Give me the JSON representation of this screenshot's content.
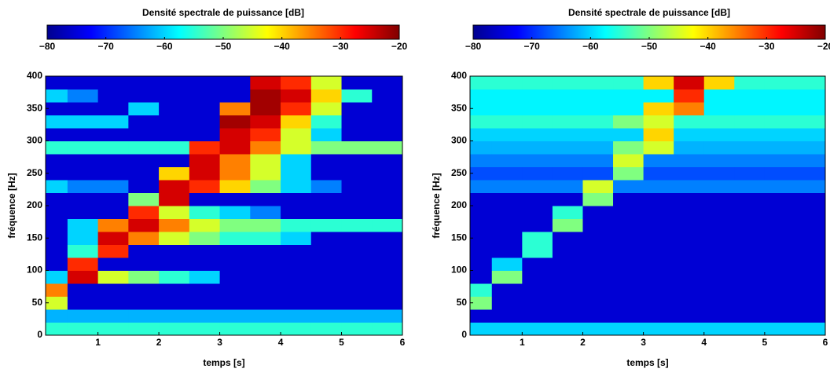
{
  "chart_data": [
    {
      "type": "heatmap",
      "colorbar_label": "Densité spectrale de puissance [dB]",
      "clim": [
        -80,
        -20
      ],
      "cticks": [
        {
          "value": -80,
          "label": "−80"
        },
        {
          "value": -70,
          "label": "−70"
        },
        {
          "value": -60,
          "label": "−60"
        },
        {
          "value": -50,
          "label": "−50"
        },
        {
          "value": -40,
          "label": "−40"
        },
        {
          "value": -30,
          "label": "−30"
        },
        {
          "value": -20,
          "label": "−20"
        }
      ],
      "colormap": "jet",
      "xlabel": "temps [s]",
      "ylabel": "fréquence [Hz]",
      "xlim": [
        0.14,
        6
      ],
      "xticks": [
        1,
        2,
        3,
        4,
        5,
        6
      ],
      "ylim": [
        0,
        400
      ],
      "yticks": [
        0,
        50,
        100,
        150,
        200,
        250,
        300,
        350,
        400
      ],
      "x": [
        0.25,
        0.75,
        1.25,
        1.75,
        2.25,
        2.75,
        3.25,
        3.75,
        4.25,
        4.75,
        5.25,
        5.75
      ],
      "y": [
        10,
        30,
        50,
        70,
        90,
        110,
        130,
        150,
        170,
        190,
        210,
        230,
        250,
        270,
        290,
        310,
        330,
        350,
        370,
        390
      ],
      "z": [
        [
          -55,
          -55,
          -55,
          -55,
          -55,
          -55,
          -55,
          -55,
          -55,
          -55,
          -55,
          -55
        ],
        [
          -62,
          -62,
          -62,
          -62,
          -62,
          -62,
          -62,
          -62,
          -62,
          -62,
          -62,
          -62
        ],
        [
          -45,
          -75,
          -75,
          -75,
          -75,
          -75,
          -75,
          -75,
          -75,
          -75,
          -75,
          -75
        ],
        [
          -35,
          -75,
          -75,
          -75,
          -75,
          -75,
          -75,
          -75,
          -75,
          -75,
          -75,
          -75
        ],
        [
          -60,
          -25,
          -45,
          -50,
          -55,
          -60,
          -75,
          -75,
          -75,
          -75,
          -75,
          -75
        ],
        [
          -75,
          -30,
          -75,
          -75,
          -75,
          -75,
          -75,
          -75,
          -75,
          -75,
          -75,
          -75
        ],
        [
          -75,
          -55,
          -30,
          -75,
          -75,
          -75,
          -75,
          -75,
          -75,
          -75,
          -75,
          -75
        ],
        [
          -75,
          -60,
          -25,
          -35,
          -45,
          -50,
          -55,
          -55,
          -60,
          -75,
          -75,
          -75
        ],
        [
          -75,
          -60,
          -35,
          -25,
          -35,
          -45,
          -50,
          -50,
          -55,
          -55,
          -55,
          -55
        ],
        [
          -75,
          -75,
          -75,
          -30,
          -45,
          -55,
          -60,
          -65,
          -75,
          -75,
          -75,
          -75
        ],
        [
          -75,
          -75,
          -75,
          -50,
          -25,
          -75,
          -75,
          -75,
          -75,
          -75,
          -75,
          -75
        ],
        [
          -60,
          -65,
          -65,
          -75,
          -25,
          -30,
          -40,
          -50,
          -60,
          -65,
          -75,
          -75
        ],
        [
          -75,
          -75,
          -75,
          -75,
          -40,
          -25,
          -35,
          -45,
          -60,
          -75,
          -75,
          -75
        ],
        [
          -75,
          -75,
          -75,
          -75,
          -75,
          -25,
          -35,
          -45,
          -60,
          -75,
          -75,
          -75
        ],
        [
          -55,
          -55,
          -55,
          -55,
          -55,
          -30,
          -25,
          -35,
          -45,
          -50,
          -50,
          -50
        ],
        [
          -75,
          -75,
          -75,
          -75,
          -75,
          -75,
          -25,
          -30,
          -45,
          -60,
          -75,
          -75
        ],
        [
          -60,
          -60,
          -60,
          -75,
          -75,
          -75,
          -22,
          -25,
          -40,
          -55,
          -75,
          -75
        ],
        [
          -75,
          -75,
          -75,
          -60,
          -75,
          -75,
          -35,
          -22,
          -30,
          -45,
          -75,
          -75
        ],
        [
          -60,
          -65,
          -75,
          -75,
          -75,
          -75,
          -75,
          -22,
          -25,
          -40,
          -55,
          -75
        ],
        [
          -75,
          -75,
          -75,
          -75,
          -75,
          -75,
          -75,
          -25,
          -30,
          -45,
          -75,
          -75
        ]
      ]
    },
    {
      "type": "heatmap",
      "colorbar_label": "Densité spectrale de puissance [dB]",
      "clim": [
        -80,
        -20
      ],
      "cticks": [
        {
          "value": -80,
          "label": "−80"
        },
        {
          "value": -70,
          "label": "−70"
        },
        {
          "value": -60,
          "label": "−60"
        },
        {
          "value": -50,
          "label": "−50"
        },
        {
          "value": -40,
          "label": "−40"
        },
        {
          "value": -30,
          "label": "−30"
        },
        {
          "value": -20,
          "label": "−20"
        }
      ],
      "colormap": "jet",
      "xlabel": "temps [s]",
      "ylabel": "fréquence [Hz]",
      "xlim": [
        0.14,
        6
      ],
      "xticks": [
        1,
        2,
        3,
        4,
        5,
        6
      ],
      "ylim": [
        0,
        400
      ],
      "yticks": [
        0,
        50,
        100,
        150,
        200,
        250,
        300,
        350,
        400
      ],
      "x": [
        0.25,
        0.75,
        1.25,
        1.75,
        2.25,
        2.75,
        3.25,
        3.75,
        4.25,
        4.75,
        5.25,
        5.75
      ],
      "y": [
        10,
        30,
        50,
        70,
        90,
        110,
        130,
        150,
        170,
        190,
        210,
        230,
        250,
        270,
        290,
        310,
        330,
        350,
        370,
        390
      ],
      "z": [
        [
          -60,
          -60,
          -60,
          -60,
          -60,
          -60,
          -60,
          -60,
          -60,
          -60,
          -60,
          -60
        ],
        [
          -75,
          -75,
          -75,
          -75,
          -75,
          -75,
          -75,
          -75,
          -75,
          -75,
          -75,
          -75
        ],
        [
          -50,
          -75,
          -75,
          -75,
          -75,
          -75,
          -75,
          -75,
          -75,
          -75,
          -75,
          -75
        ],
        [
          -55,
          -75,
          -75,
          -75,
          -75,
          -75,
          -75,
          -75,
          -75,
          -75,
          -75,
          -75
        ],
        [
          -75,
          -50,
          -75,
          -75,
          -75,
          -75,
          -75,
          -75,
          -75,
          -75,
          -75,
          -75
        ],
        [
          -75,
          -60,
          -75,
          -75,
          -75,
          -75,
          -75,
          -75,
          -75,
          -75,
          -75,
          -75
        ],
        [
          -75,
          -75,
          -55,
          -75,
          -75,
          -75,
          -75,
          -75,
          -75,
          -75,
          -75,
          -75
        ],
        [
          -75,
          -75,
          -55,
          -75,
          -75,
          -75,
          -75,
          -75,
          -75,
          -75,
          -75,
          -75
        ],
        [
          -75,
          -75,
          -75,
          -50,
          -75,
          -75,
          -75,
          -75,
          -75,
          -75,
          -75,
          -75
        ],
        [
          -75,
          -75,
          -75,
          -55,
          -75,
          -75,
          -75,
          -75,
          -75,
          -75,
          -75,
          -75
        ],
        [
          -75,
          -75,
          -75,
          -75,
          -50,
          -75,
          -75,
          -75,
          -75,
          -75,
          -75,
          -75
        ],
        [
          -65,
          -65,
          -65,
          -65,
          -45,
          -65,
          -65,
          -65,
          -65,
          -65,
          -65,
          -65
        ],
        [
          -68,
          -68,
          -68,
          -68,
          -68,
          -50,
          -68,
          -68,
          -68,
          -68,
          -68,
          -68
        ],
        [
          -65,
          -65,
          -65,
          -65,
          -65,
          -45,
          -65,
          -65,
          -65,
          -65,
          -65,
          -65
        ],
        [
          -62,
          -62,
          -62,
          -62,
          -62,
          -50,
          -45,
          -62,
          -62,
          -62,
          -62,
          -62
        ],
        [
          -60,
          -60,
          -60,
          -60,
          -60,
          -60,
          -40,
          -60,
          -60,
          -60,
          -60,
          -60
        ],
        [
          -55,
          -55,
          -55,
          -55,
          -55,
          -50,
          -45,
          -55,
          -55,
          -55,
          -55,
          -55
        ],
        [
          -58,
          -58,
          -58,
          -58,
          -58,
          -58,
          -40,
          -35,
          -58,
          -58,
          -58,
          -58
        ],
        [
          -58,
          -58,
          -58,
          -58,
          -58,
          -58,
          -58,
          -30,
          -58,
          -58,
          -58,
          -58
        ],
        [
          -55,
          -55,
          -55,
          -55,
          -55,
          -55,
          -40,
          -25,
          -40,
          -55,
          -55,
          -55
        ]
      ]
    }
  ]
}
